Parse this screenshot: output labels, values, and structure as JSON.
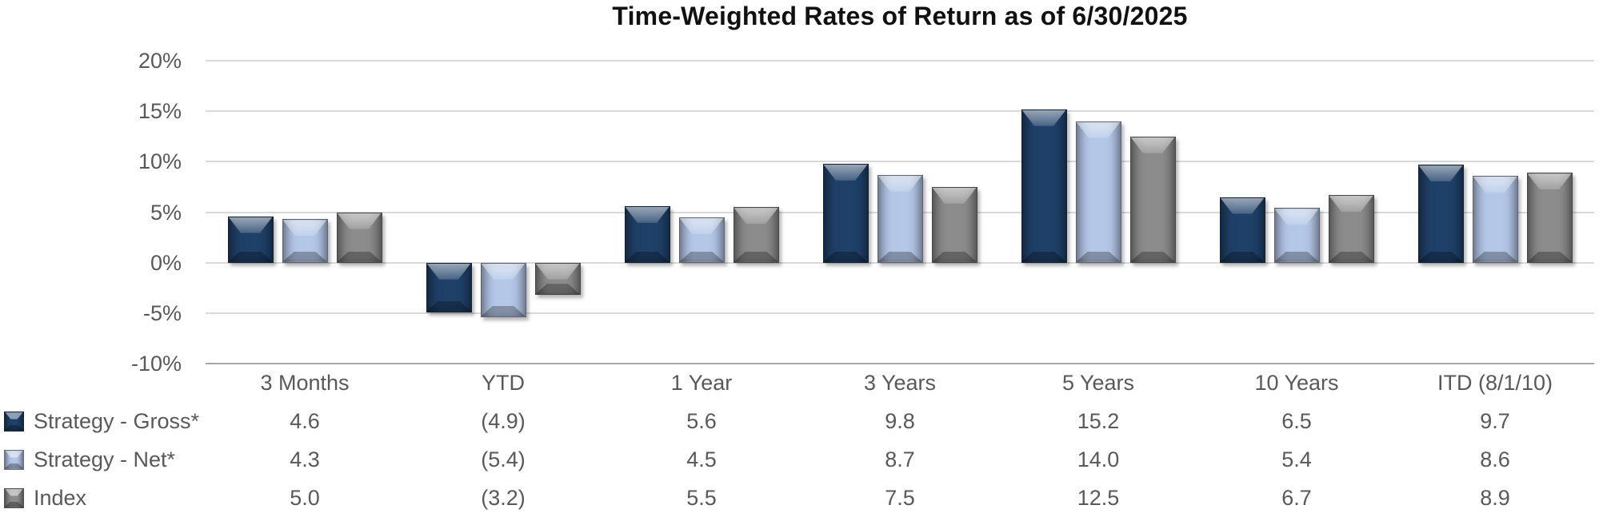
{
  "chart_data": {
    "type": "bar",
    "title": "Time-Weighted Rates of Return as of 6/30/2025",
    "categories": [
      "3 Months",
      "YTD",
      "1 Year",
      "3 Years",
      "5 Years",
      "10 Years",
      "ITD (8/1/10)"
    ],
    "series": [
      {
        "name": "Strategy - Gross*",
        "color": "#1F4068",
        "values": [
          4.6,
          -4.9,
          5.6,
          9.8,
          15.2,
          6.5,
          9.7
        ],
        "display": [
          "4.6",
          "(4.9)",
          "5.6",
          "9.8",
          "15.2",
          "6.5",
          "9.7"
        ]
      },
      {
        "name": "Strategy - Net*",
        "color": "#B4C7E7",
        "values": [
          4.3,
          -5.4,
          4.5,
          8.7,
          14.0,
          5.4,
          8.6
        ],
        "display": [
          "4.3",
          "(5.4)",
          "4.5",
          "8.7",
          "14.0",
          "5.4",
          "8.6"
        ]
      },
      {
        "name": "Index",
        "color": "#8C8C8C",
        "values": [
          5.0,
          -3.2,
          5.5,
          7.5,
          12.5,
          6.7,
          8.9
        ],
        "display": [
          "5.0",
          "(3.2)",
          "5.5",
          "7.5",
          "12.5",
          "6.7",
          "8.9"
        ]
      }
    ],
    "y_axis": {
      "min": -10,
      "max": 20,
      "step": 5,
      "tick_labels": [
        "20%",
        "15%",
        "10%",
        "5%",
        "0%",
        "-5%",
        "-10%"
      ]
    },
    "grid": true,
    "legend_position": "left-of-data-table"
  },
  "colors": {
    "gridline": "#D9D9D9",
    "axis_line": "#A6A6A6",
    "text": "#595959",
    "title_text": "#111111"
  }
}
